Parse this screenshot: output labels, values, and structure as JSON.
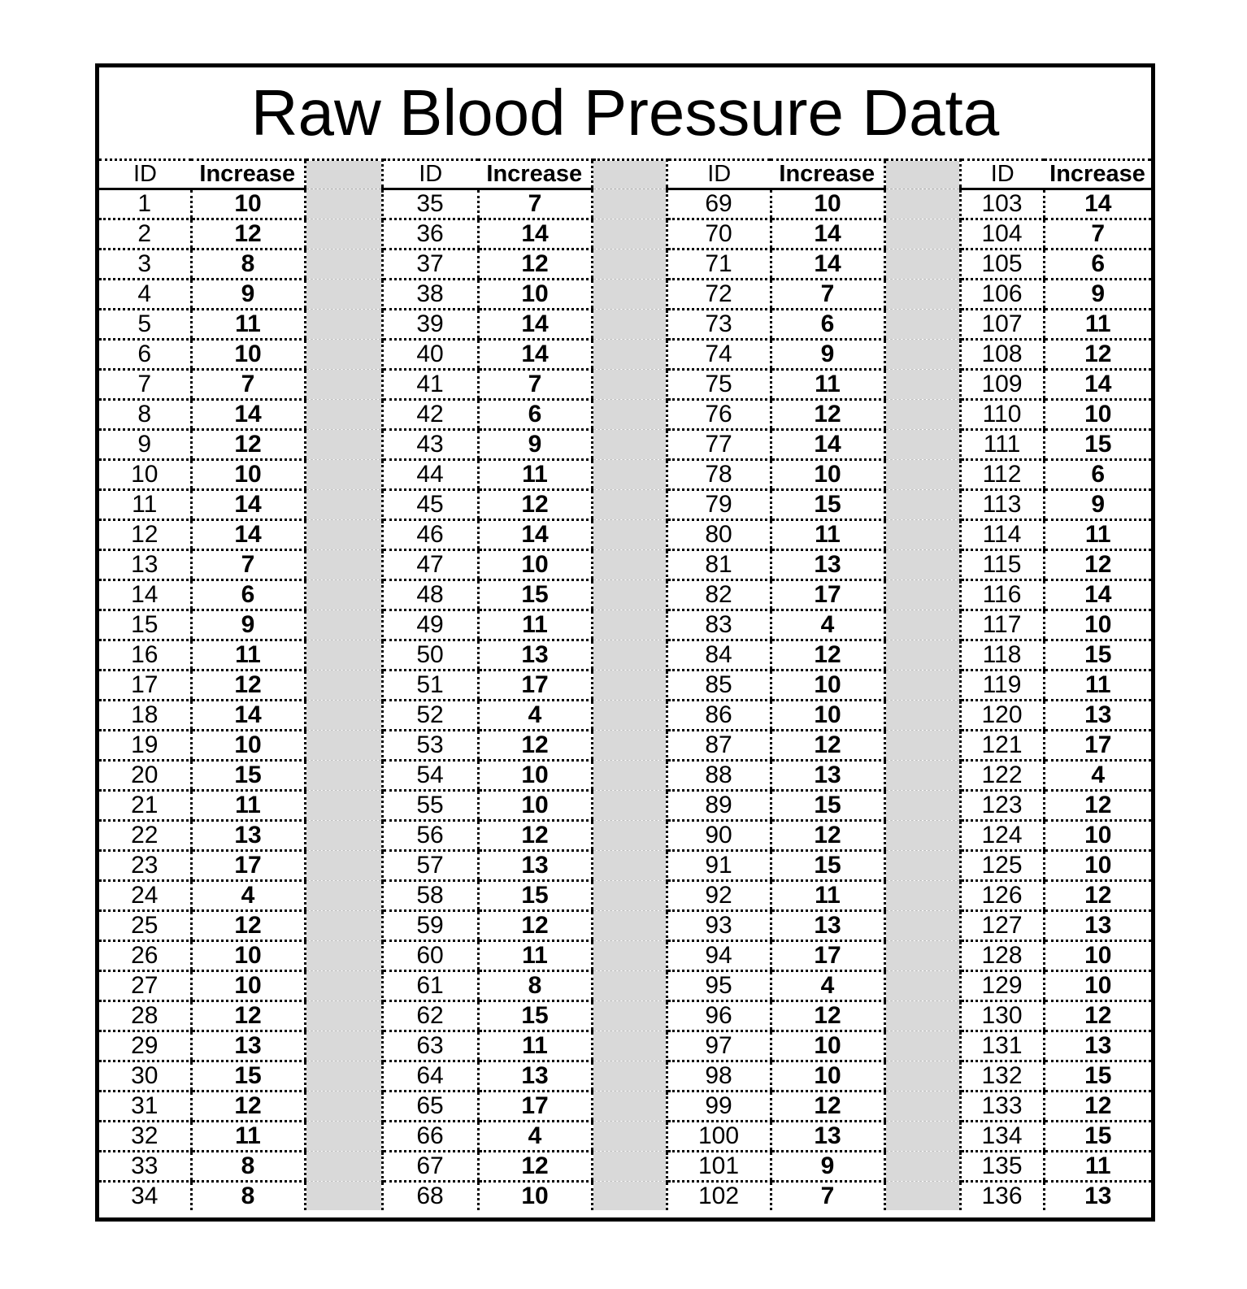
{
  "title": "Raw Blood Pressure Data",
  "colors": {
    "border_black": "#000000",
    "spacer_gray": "#d9d9d9",
    "background": "#ffffff"
  },
  "table": {
    "header": {
      "id": "ID",
      "increase": "Increase"
    },
    "groups": [
      {
        "rows": [
          [
            1,
            10
          ],
          [
            2,
            12
          ],
          [
            3,
            8
          ],
          [
            4,
            9
          ],
          [
            5,
            11
          ],
          [
            6,
            10
          ],
          [
            7,
            7
          ],
          [
            8,
            14
          ],
          [
            9,
            12
          ],
          [
            10,
            10
          ],
          [
            11,
            14
          ],
          [
            12,
            14
          ],
          [
            13,
            7
          ],
          [
            14,
            6
          ],
          [
            15,
            9
          ],
          [
            16,
            11
          ],
          [
            17,
            12
          ],
          [
            18,
            14
          ],
          [
            19,
            10
          ],
          [
            20,
            15
          ],
          [
            21,
            11
          ],
          [
            22,
            13
          ],
          [
            23,
            17
          ],
          [
            24,
            4
          ],
          [
            25,
            12
          ],
          [
            26,
            10
          ],
          [
            27,
            10
          ],
          [
            28,
            12
          ],
          [
            29,
            13
          ],
          [
            30,
            15
          ],
          [
            31,
            12
          ],
          [
            32,
            11
          ],
          [
            33,
            8
          ],
          [
            34,
            8
          ]
        ]
      },
      {
        "rows": [
          [
            35,
            7
          ],
          [
            36,
            14
          ],
          [
            37,
            12
          ],
          [
            38,
            10
          ],
          [
            39,
            14
          ],
          [
            40,
            14
          ],
          [
            41,
            7
          ],
          [
            42,
            6
          ],
          [
            43,
            9
          ],
          [
            44,
            11
          ],
          [
            45,
            12
          ],
          [
            46,
            14
          ],
          [
            47,
            10
          ],
          [
            48,
            15
          ],
          [
            49,
            11
          ],
          [
            50,
            13
          ],
          [
            51,
            17
          ],
          [
            52,
            4
          ],
          [
            53,
            12
          ],
          [
            54,
            10
          ],
          [
            55,
            10
          ],
          [
            56,
            12
          ],
          [
            57,
            13
          ],
          [
            58,
            15
          ],
          [
            59,
            12
          ],
          [
            60,
            11
          ],
          [
            61,
            8
          ],
          [
            62,
            15
          ],
          [
            63,
            11
          ],
          [
            64,
            13
          ],
          [
            65,
            17
          ],
          [
            66,
            4
          ],
          [
            67,
            12
          ],
          [
            68,
            10
          ]
        ]
      },
      {
        "rows": [
          [
            69,
            10
          ],
          [
            70,
            14
          ],
          [
            71,
            14
          ],
          [
            72,
            7
          ],
          [
            73,
            6
          ],
          [
            74,
            9
          ],
          [
            75,
            11
          ],
          [
            76,
            12
          ],
          [
            77,
            14
          ],
          [
            78,
            10
          ],
          [
            79,
            15
          ],
          [
            80,
            11
          ],
          [
            81,
            13
          ],
          [
            82,
            17
          ],
          [
            83,
            4
          ],
          [
            84,
            12
          ],
          [
            85,
            10
          ],
          [
            86,
            10
          ],
          [
            87,
            12
          ],
          [
            88,
            13
          ],
          [
            89,
            15
          ],
          [
            90,
            12
          ],
          [
            91,
            15
          ],
          [
            92,
            11
          ],
          [
            93,
            13
          ],
          [
            94,
            17
          ],
          [
            95,
            4
          ],
          [
            96,
            12
          ],
          [
            97,
            10
          ],
          [
            98,
            10
          ],
          [
            99,
            12
          ],
          [
            100,
            13
          ],
          [
            101,
            9
          ],
          [
            102,
            7
          ]
        ]
      },
      {
        "rows": [
          [
            103,
            14
          ],
          [
            104,
            7
          ],
          [
            105,
            6
          ],
          [
            106,
            9
          ],
          [
            107,
            11
          ],
          [
            108,
            12
          ],
          [
            109,
            14
          ],
          [
            110,
            10
          ],
          [
            111,
            15
          ],
          [
            112,
            6
          ],
          [
            113,
            9
          ],
          [
            114,
            11
          ],
          [
            115,
            12
          ],
          [
            116,
            14
          ],
          [
            117,
            10
          ],
          [
            118,
            15
          ],
          [
            119,
            11
          ],
          [
            120,
            13
          ],
          [
            121,
            17
          ],
          [
            122,
            4
          ],
          [
            123,
            12
          ],
          [
            124,
            10
          ],
          [
            125,
            10
          ],
          [
            126,
            12
          ],
          [
            127,
            13
          ],
          [
            128,
            10
          ],
          [
            129,
            10
          ],
          [
            130,
            12
          ],
          [
            131,
            13
          ],
          [
            132,
            15
          ],
          [
            133,
            12
          ],
          [
            134,
            15
          ],
          [
            135,
            11
          ],
          [
            136,
            13
          ]
        ]
      }
    ]
  }
}
